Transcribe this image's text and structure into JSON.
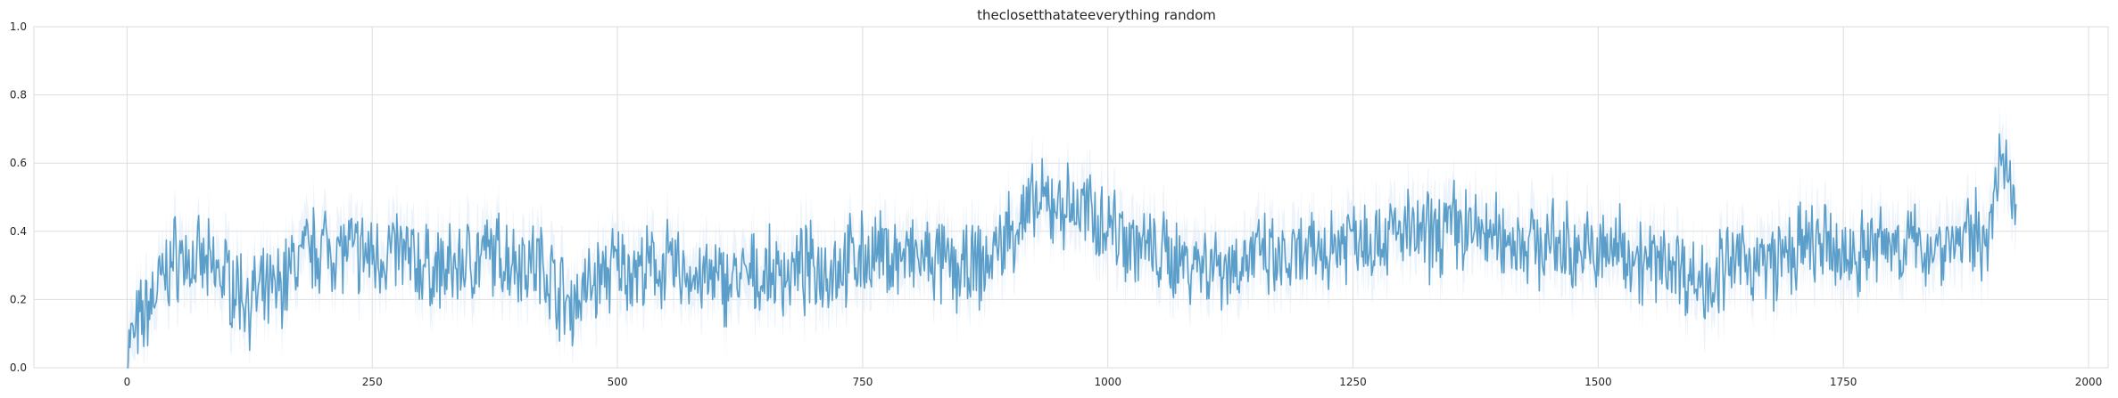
{
  "chart_data": {
    "type": "line",
    "title": "theclosetthatateeverything random",
    "xlabel": "",
    "ylabel": "",
    "xlim": [
      -95,
      2020
    ],
    "ylim": [
      0,
      1.0
    ],
    "x_ticks": [
      0,
      250,
      500,
      750,
      1000,
      1250,
      1500,
      1750,
      2000
    ],
    "y_ticks": [
      0.0,
      0.2,
      0.4,
      0.6,
      0.8,
      1.0
    ],
    "grid": true,
    "legend": "none",
    "colors": {
      "line": "#5b9ec9",
      "band": "#dce9f5",
      "grid": "#dddddd",
      "axis_text": "#262626"
    },
    "series": [
      {
        "x": [
          0,
          25,
          50,
          75,
          100,
          125,
          150,
          175,
          200,
          225,
          250,
          275,
          300,
          325,
          350,
          375,
          400,
          425,
          450,
          475,
          500,
          525,
          550,
          575,
          600,
          625,
          650,
          675,
          700,
          725,
          750,
          775,
          800,
          825,
          850,
          875,
          900,
          925,
          950,
          975,
          1000,
          1025,
          1050,
          1075,
          1100,
          1125,
          1150,
          1175,
          1200,
          1225,
          1250,
          1275,
          1300,
          1325,
          1350,
          1375,
          1400,
          1425,
          1450,
          1475,
          1500,
          1525,
          1550,
          1575,
          1600,
          1625,
          1650,
          1675,
          1700,
          1725,
          1750,
          1775,
          1800,
          1825,
          1850,
          1875,
          1900,
          1910,
          1920,
          1926
        ],
        "values": [
          0.05,
          0.2,
          0.33,
          0.3,
          0.27,
          0.2,
          0.22,
          0.32,
          0.36,
          0.34,
          0.33,
          0.34,
          0.3,
          0.28,
          0.32,
          0.33,
          0.32,
          0.3,
          0.18,
          0.25,
          0.3,
          0.28,
          0.3,
          0.27,
          0.25,
          0.26,
          0.27,
          0.28,
          0.29,
          0.3,
          0.33,
          0.33,
          0.32,
          0.31,
          0.28,
          0.3,
          0.4,
          0.47,
          0.48,
          0.46,
          0.43,
          0.37,
          0.33,
          0.32,
          0.31,
          0.3,
          0.33,
          0.3,
          0.32,
          0.35,
          0.4,
          0.38,
          0.4,
          0.38,
          0.42,
          0.4,
          0.38,
          0.37,
          0.36,
          0.35,
          0.33,
          0.36,
          0.3,
          0.32,
          0.25,
          0.28,
          0.32,
          0.3,
          0.34,
          0.36,
          0.32,
          0.35,
          0.37,
          0.35,
          0.36,
          0.38,
          0.4,
          0.62,
          0.5,
          0.48
        ]
      }
    ]
  }
}
